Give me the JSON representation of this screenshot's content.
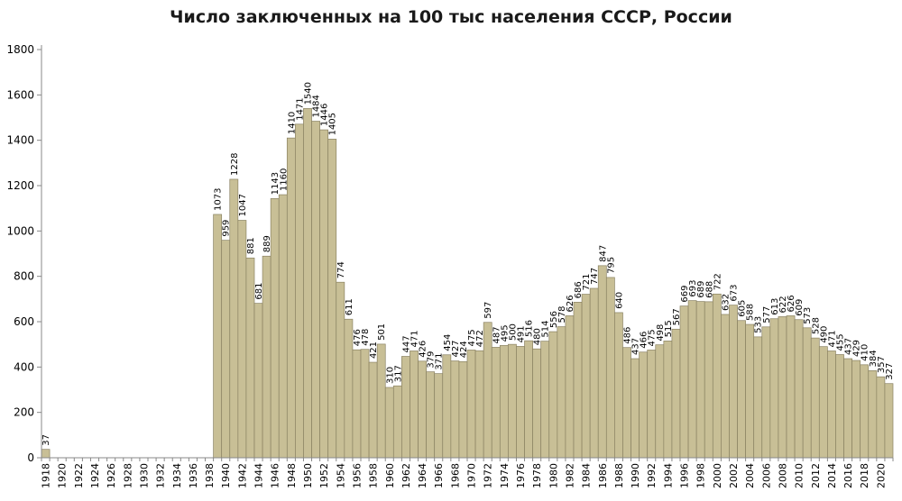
{
  "chart_data": {
    "type": "bar",
    "title": "Число заключенных  на 100 тыс населения СССР, России",
    "xlabel": "",
    "ylabel": "",
    "ylim": [
      0,
      1800
    ],
    "yticks": [
      0,
      200,
      400,
      600,
      800,
      1000,
      1200,
      1400,
      1600,
      1800
    ],
    "grid": false,
    "legend": "none",
    "bar_color": "#c8bf96",
    "bar_border_color": "#8a8262",
    "categories": [
      1918,
      1919,
      1920,
      1921,
      1922,
      1923,
      1924,
      1925,
      1926,
      1927,
      1928,
      1929,
      1930,
      1931,
      1932,
      1933,
      1934,
      1935,
      1936,
      1937,
      1938,
      1939,
      1940,
      1941,
      1942,
      1943,
      1944,
      1945,
      1946,
      1947,
      1948,
      1949,
      1950,
      1951,
      1952,
      1953,
      1954,
      1955,
      1956,
      1957,
      1958,
      1959,
      1960,
      1961,
      1962,
      1963,
      1964,
      1965,
      1966,
      1967,
      1968,
      1969,
      1970,
      1971,
      1972,
      1973,
      1974,
      1975,
      1976,
      1977,
      1978,
      1979,
      1980,
      1981,
      1982,
      1983,
      1984,
      1985,
      1986,
      1987,
      1988,
      1989,
      1990,
      1991,
      1992,
      1993,
      1994,
      1995,
      1996,
      1997,
      1998,
      1999,
      2000,
      2001,
      2002,
      2003,
      2004,
      2005,
      2006,
      2007,
      2008,
      2009,
      2010,
      2011,
      2012,
      2013,
      2014,
      2015,
      2016,
      2017,
      2018,
      2019,
      2020,
      2021
    ],
    "values": [
      37,
      null,
      null,
      null,
      null,
      null,
      null,
      null,
      null,
      null,
      null,
      null,
      null,
      null,
      null,
      null,
      null,
      null,
      null,
      null,
      null,
      1073,
      959,
      1228,
      1047,
      881,
      681,
      889,
      1143,
      1160,
      1410,
      1471,
      1540,
      1484,
      1446,
      1405,
      774,
      611,
      476,
      478,
      421,
      501,
      310,
      317,
      447,
      471,
      426,
      379,
      371,
      454,
      427,
      424,
      475,
      472,
      597,
      487,
      495,
      500,
      491,
      516,
      480,
      514,
      556,
      578,
      626,
      686,
      721,
      747,
      847,
      795,
      640,
      486,
      437,
      466,
      475,
      498,
      515,
      567,
      669,
      693,
      689,
      688,
      722,
      632,
      673,
      605,
      588,
      533,
      577,
      613,
      622,
      626,
      609,
      573,
      528,
      490,
      471,
      455,
      437,
      429,
      410,
      384,
      357,
      327
    ],
    "xtick_labels": [
      "1918",
      "1920",
      "1922",
      "1924",
      "1926",
      "1928",
      "1930",
      "1932",
      "1934",
      "1936",
      "1938",
      "1940",
      "1942",
      "1944",
      "1946",
      "1948",
      "1950",
      "1952",
      "1954",
      "1956",
      "1958",
      "1960",
      "1962",
      "1964",
      "1966",
      "1968",
      "1970",
      "1972",
      "1974",
      "1976",
      "1978",
      "1980",
      "1982",
      "1984",
      "1986",
      "1988",
      "1990",
      "1992",
      "1994",
      "1996",
      "1998",
      "2000",
      "2002",
      "2004",
      "2006",
      "2008",
      "2010",
      "2012",
      "2014",
      "2016",
      "2018",
      "2020"
    ]
  }
}
